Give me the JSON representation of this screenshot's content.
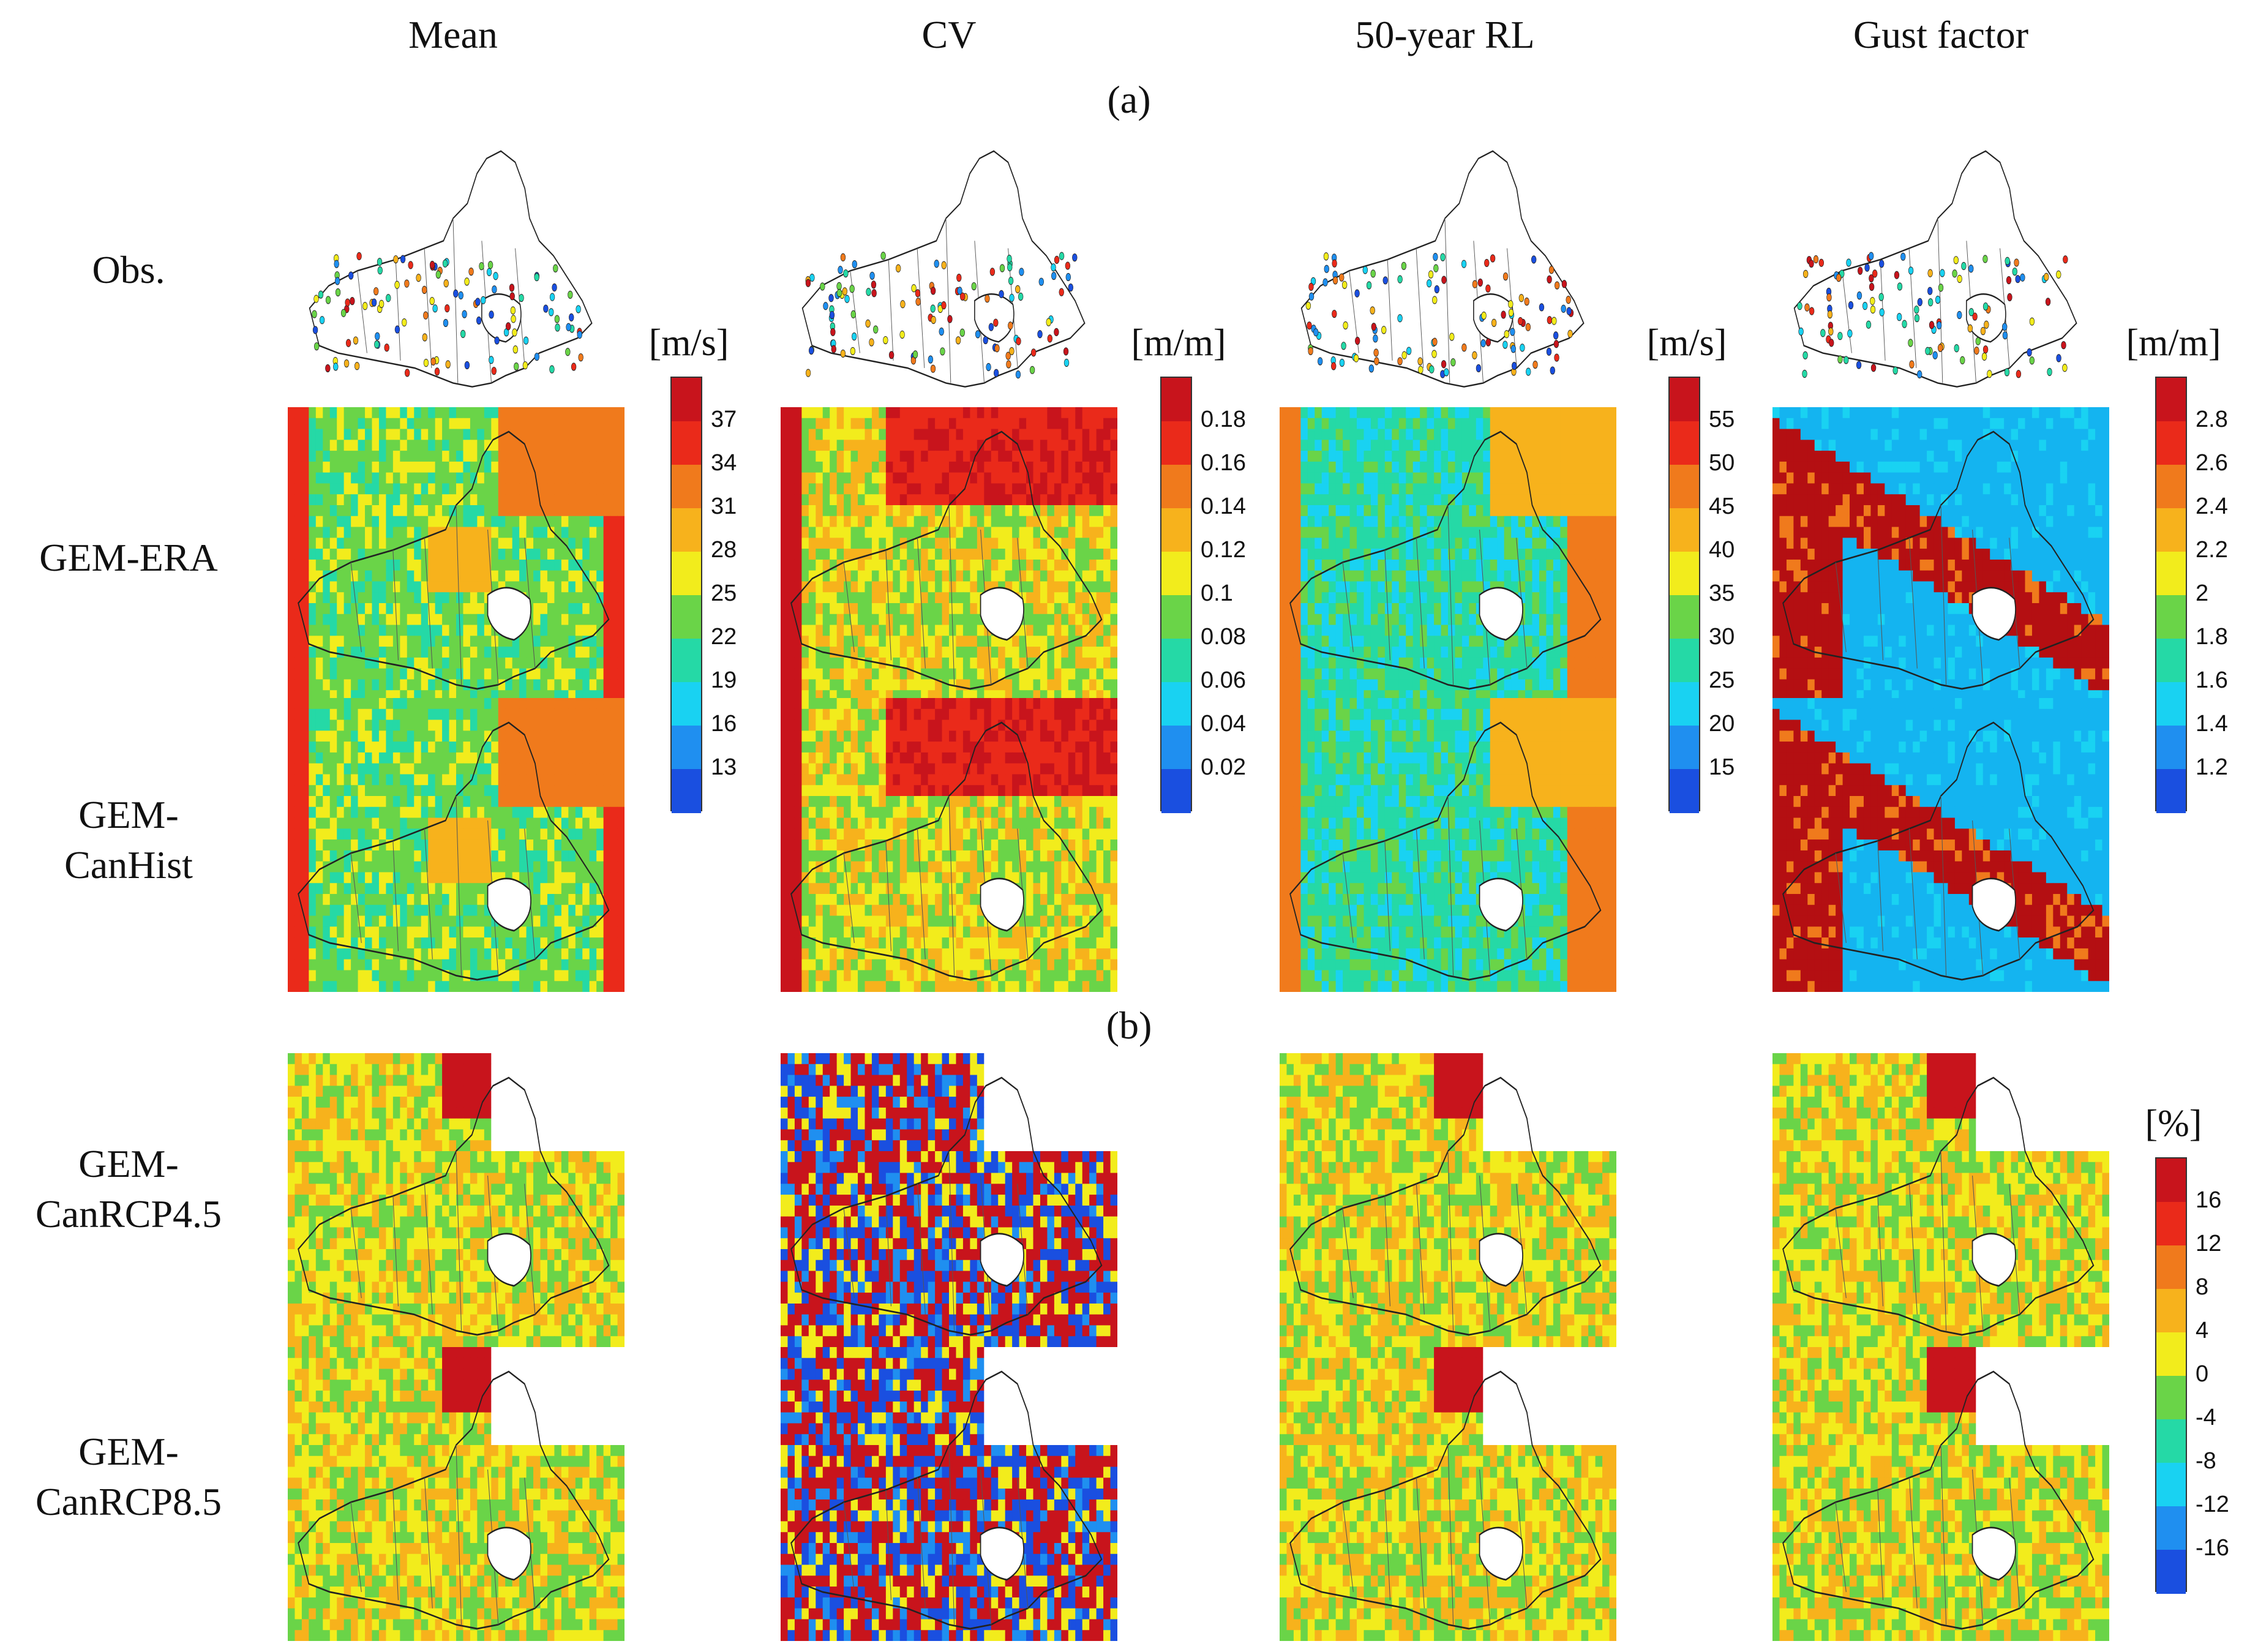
{
  "column_titles": [
    "Mean",
    "CV",
    "50-year RL",
    "Gust factor"
  ],
  "panel_labels": {
    "a": "(a)",
    "b": "(b)"
  },
  "row_labels": {
    "obs": "Obs.",
    "era": "GEM-ERA",
    "hist_1": "GEM-",
    "hist_2": "CanHist",
    "rcp45_1": "GEM-",
    "rcp45_2": "CanRCP4.5",
    "rcp85_1": "GEM-",
    "rcp85_2": "CanRCP8.5"
  },
  "colorbars": [
    {
      "unit": "[m/s]",
      "ticks": [
        "37",
        "34",
        "31",
        "28",
        "25",
        "22",
        "19",
        "16",
        "13"
      ]
    },
    {
      "unit": "[m/m]",
      "ticks": [
        "0.18",
        "0.16",
        "0.14",
        "0.12",
        "0.1",
        "0.08",
        "0.06",
        "0.04",
        "0.02"
      ]
    },
    {
      "unit": "[m/s]",
      "ticks": [
        "55",
        "50",
        "45",
        "40",
        "35",
        "30",
        "25",
        "20",
        "15"
      ]
    },
    {
      "unit": "[m/m]",
      "ticks": [
        "2.8",
        "2.6",
        "2.4",
        "2.2",
        "2",
        "1.8",
        "1.6",
        "1.4",
        "1.2"
      ]
    },
    {
      "unit": "[%]",
      "ticks": [
        "16",
        "12",
        "8",
        "4",
        "0",
        "-4",
        "-8",
        "-12",
        "-16"
      ]
    }
  ],
  "colors": {
    "scale": [
      "#1a4fe0",
      "#1f8ff0",
      "#19d2f2",
      "#25d9a6",
      "#6ad448",
      "#f2ec1c",
      "#f7b21c",
      "#f07a1c",
      "#ea2a1a",
      "#c8141c"
    ],
    "gust_background": "#14b4f0",
    "dark_red": "#b40f12"
  }
}
